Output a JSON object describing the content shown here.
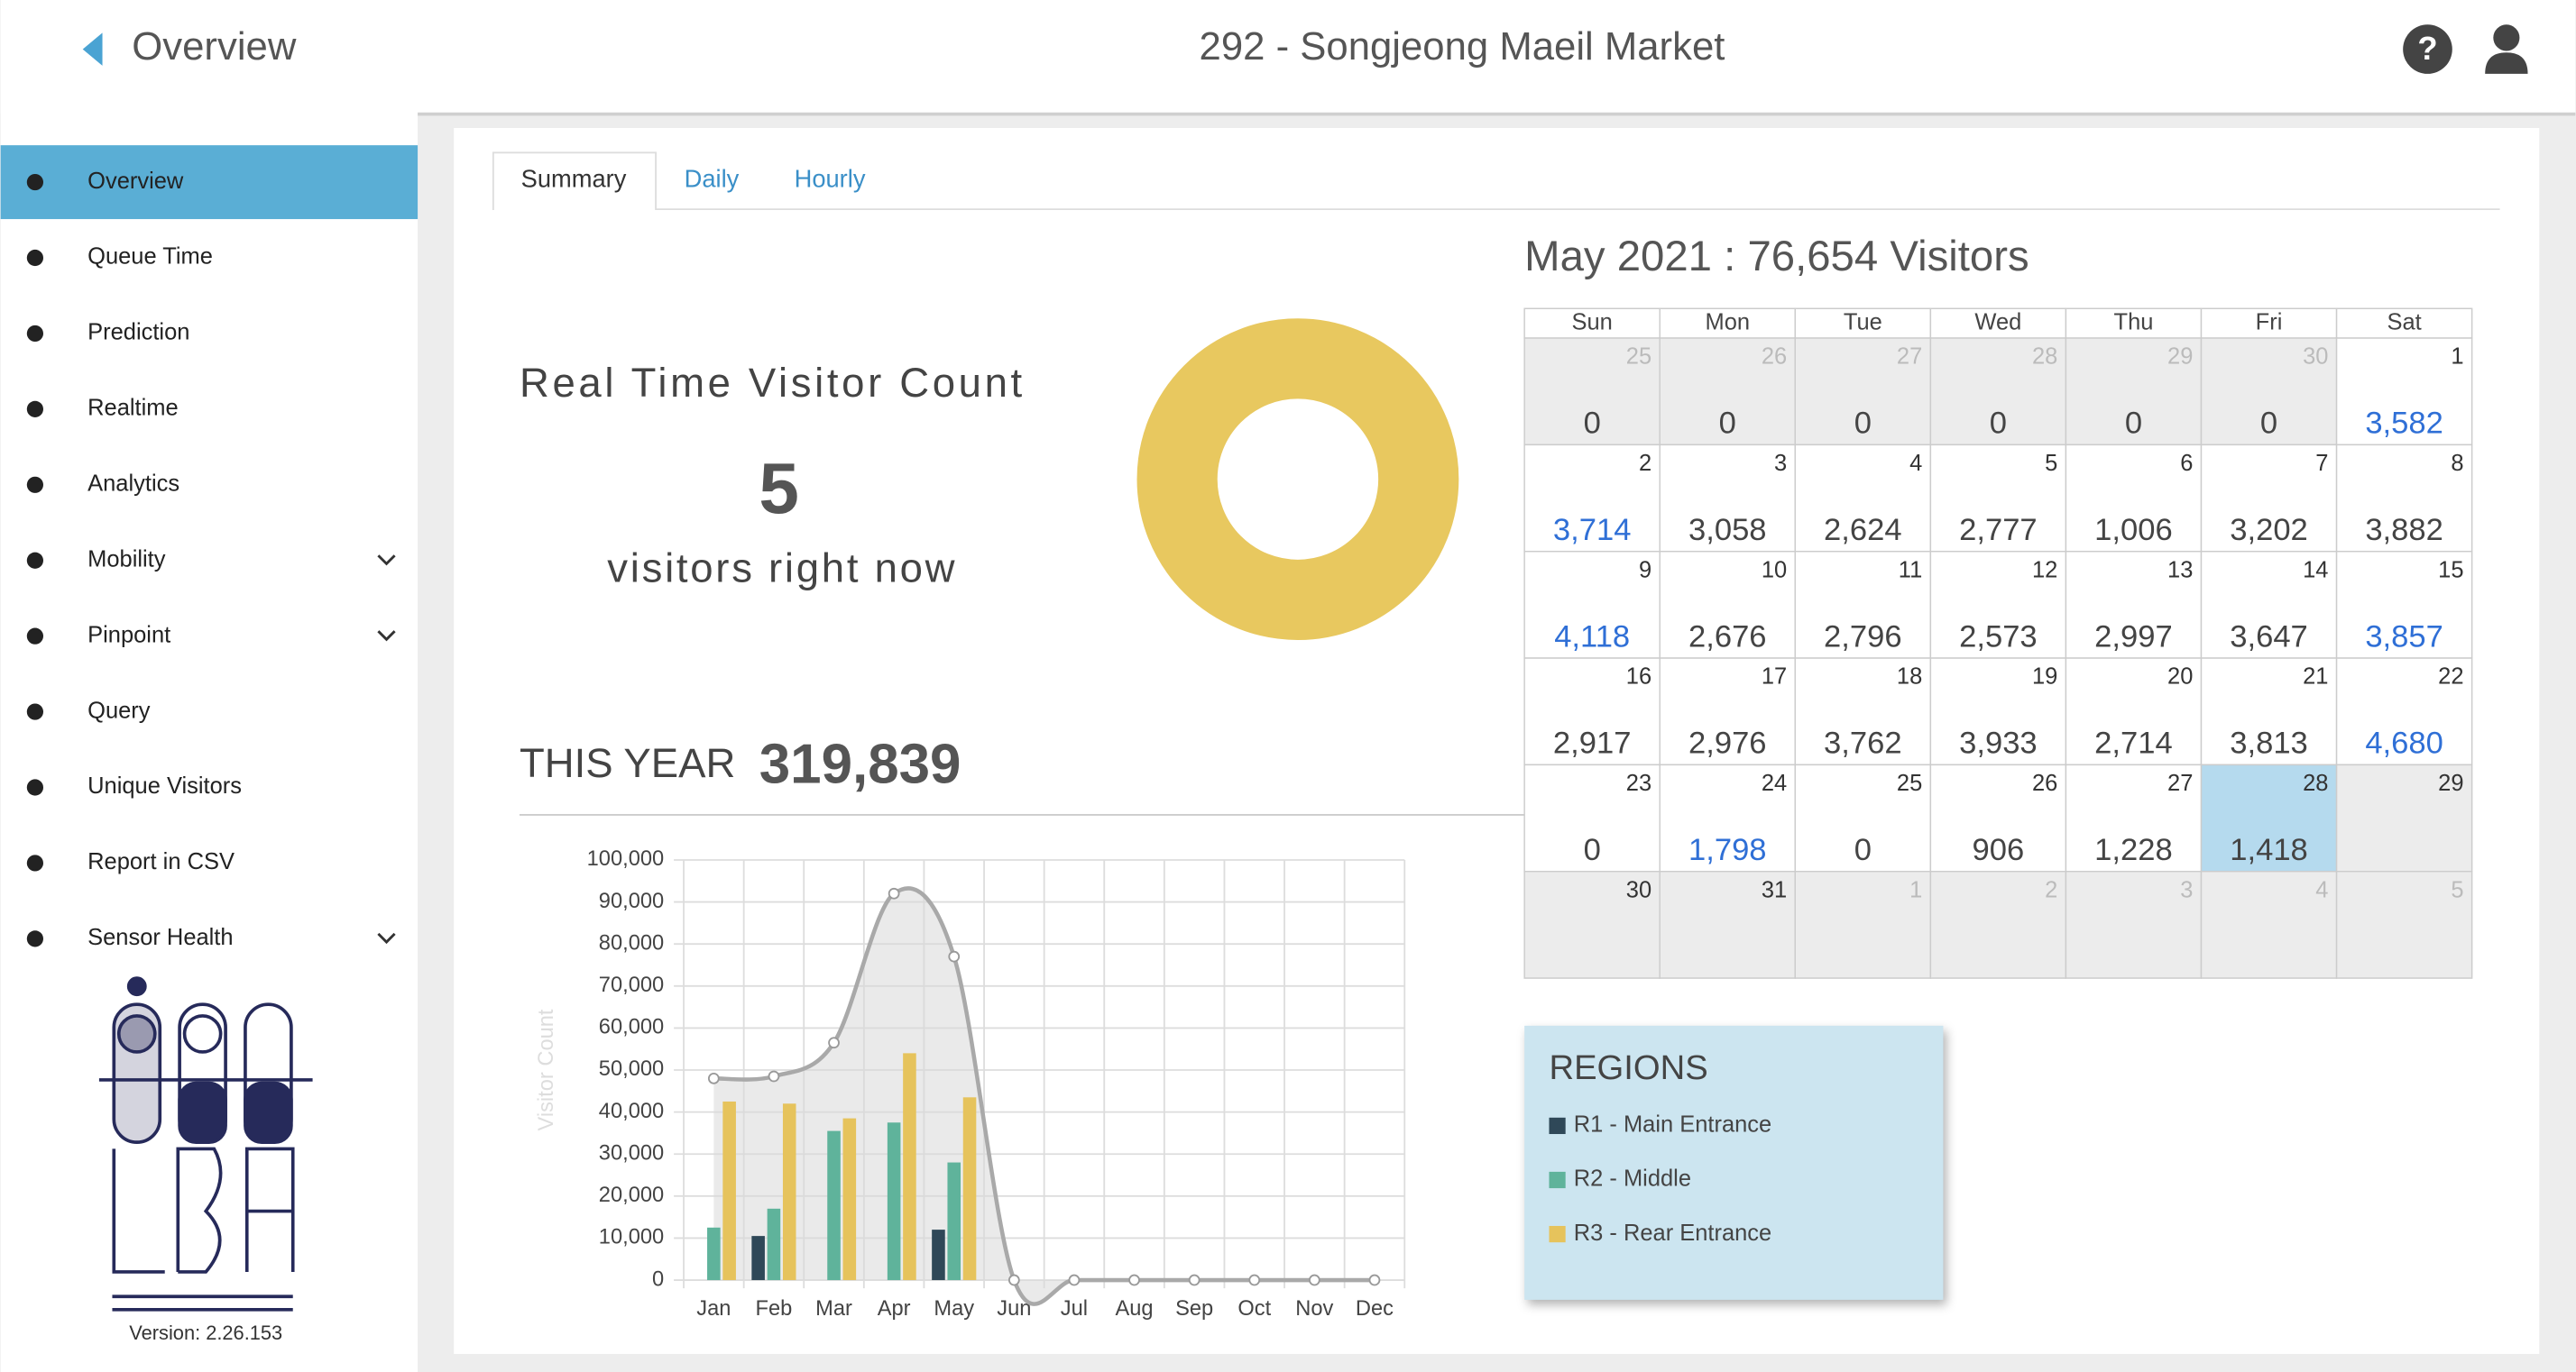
{
  "header": {
    "back": "Overview",
    "title": "292 - Songjeong Maeil Market"
  },
  "sidebar": {
    "items": [
      {
        "label": "Overview",
        "active": true
      },
      {
        "label": "Queue Time"
      },
      {
        "label": "Prediction"
      },
      {
        "label": "Realtime"
      },
      {
        "label": "Analytics"
      },
      {
        "label": "Mobility",
        "expandable": true
      },
      {
        "label": "Pinpoint",
        "expandable": true
      },
      {
        "label": "Query"
      },
      {
        "label": "Unique Visitors"
      },
      {
        "label": "Report in CSV"
      },
      {
        "label": "Sensor Health",
        "expandable": true
      }
    ],
    "version": "Version: 2.26.153"
  },
  "tabs": {
    "items": [
      "Summary",
      "Daily",
      "Hourly"
    ],
    "active": 0
  },
  "realtime": {
    "title": "Real Time Visitor Count",
    "count": 5,
    "caption": "visitors right now"
  },
  "this_year": {
    "label": "THIS YEAR",
    "value": "319,839"
  },
  "chart_data": {
    "type": "bar",
    "ylabel": "Visitor Count",
    "legend_title": "REGIONS",
    "categories": [
      "Jan",
      "Feb",
      "Mar",
      "Apr",
      "May",
      "Jun",
      "Jul",
      "Aug",
      "Sep",
      "Oct",
      "Nov",
      "Dec"
    ],
    "series": [
      {
        "name": "R1 - Main Entrance",
        "color": "#2f4858",
        "values": [
          0,
          10500,
          0,
          0,
          12000,
          0,
          0,
          0,
          0,
          0,
          0,
          0
        ]
      },
      {
        "name": "R2 - Middle",
        "color": "#5fb39b",
        "values": [
          12500,
          17000,
          35500,
          37500,
          28000,
          0,
          0,
          0,
          0,
          0,
          0,
          0
        ]
      },
      {
        "name": "R3 - Rear Entrance",
        "color": "#e6c35c",
        "values": [
          42500,
          42000,
          38500,
          54000,
          43500,
          0,
          0,
          0,
          0,
          0,
          0,
          0
        ]
      }
    ],
    "line": {
      "type": "line",
      "color": "#a9a9a9",
      "values": [
        48000,
        48500,
        56500,
        92000,
        77000,
        0,
        0,
        0,
        0,
        0,
        0,
        0
      ]
    },
    "ylim": [
      0,
      100000
    ],
    "yticks": [
      0,
      {
        "value": 10000,
        "label": "10,000"
      },
      {
        "value": 20000,
        "label": "20,000"
      },
      {
        "value": 30000,
        "label": "30,000"
      },
      {
        "value": 40000,
        "label": "40,000"
      },
      {
        "value": 50000,
        "label": "50,000"
      },
      {
        "value": 60000,
        "label": "60,000"
      },
      {
        "value": 70000,
        "label": "70,000"
      },
      {
        "value": 80000,
        "label": "80,000"
      },
      {
        "value": 90000,
        "label": "90,000"
      },
      {
        "value": 100000,
        "label": "100,000"
      }
    ],
    "grid": true
  },
  "calendar": {
    "title": "May 2021 : 76,654 Visitors",
    "weekdays": [
      "Sun",
      "Mon",
      "Tue",
      "Wed",
      "Thu",
      "Fri",
      "Sat"
    ],
    "rows": [
      [
        {
          "day": 25,
          "count": "0",
          "state": "other"
        },
        {
          "day": 26,
          "count": "0",
          "state": "other"
        },
        {
          "day": 27,
          "count": "0",
          "state": "other"
        },
        {
          "day": 28,
          "count": "0",
          "state": "other"
        },
        {
          "day": 29,
          "count": "0",
          "state": "other"
        },
        {
          "day": 30,
          "count": "0",
          "state": "other"
        },
        {
          "day": 1,
          "count": "3,582",
          "highlight": true
        }
      ],
      [
        {
          "day": 2,
          "count": "3,714",
          "highlight": true
        },
        {
          "day": 3,
          "count": "3,058"
        },
        {
          "day": 4,
          "count": "2,624"
        },
        {
          "day": 5,
          "count": "2,777"
        },
        {
          "day": 6,
          "count": "1,006"
        },
        {
          "day": 7,
          "count": "3,202"
        },
        {
          "day": 8,
          "count": "3,882"
        }
      ],
      [
        {
          "day": 9,
          "count": "4,118",
          "highlight": true
        },
        {
          "day": 10,
          "count": "2,676"
        },
        {
          "day": 11,
          "count": "2,796"
        },
        {
          "day": 12,
          "count": "2,573"
        },
        {
          "day": 13,
          "count": "2,997"
        },
        {
          "day": 14,
          "count": "3,647"
        },
        {
          "day": 15,
          "count": "3,857",
          "highlight": true
        }
      ],
      [
        {
          "day": 16,
          "count": "2,917"
        },
        {
          "day": 17,
          "count": "2,976"
        },
        {
          "day": 18,
          "count": "3,762"
        },
        {
          "day": 19,
          "count": "3,933"
        },
        {
          "day": 20,
          "count": "2,714"
        },
        {
          "day": 21,
          "count": "3,813"
        },
        {
          "day": 22,
          "count": "4,680",
          "highlight": true
        }
      ],
      [
        {
          "day": 23,
          "count": "0"
        },
        {
          "day": 24,
          "count": "1,798",
          "highlight": true
        },
        {
          "day": 25,
          "count": "0"
        },
        {
          "day": 26,
          "count": "906"
        },
        {
          "day": 27,
          "count": "1,228"
        },
        {
          "day": 28,
          "count": "1,418",
          "state": "today"
        },
        {
          "day": 29,
          "state": "future"
        }
      ],
      [
        {
          "day": 30,
          "state": "future"
        },
        {
          "day": 31,
          "state": "future"
        },
        {
          "day": 1,
          "state": "other"
        },
        {
          "day": 2,
          "state": "other"
        },
        {
          "day": 3,
          "state": "other"
        },
        {
          "day": 4,
          "state": "other"
        },
        {
          "day": 5,
          "state": "other"
        }
      ]
    ]
  }
}
